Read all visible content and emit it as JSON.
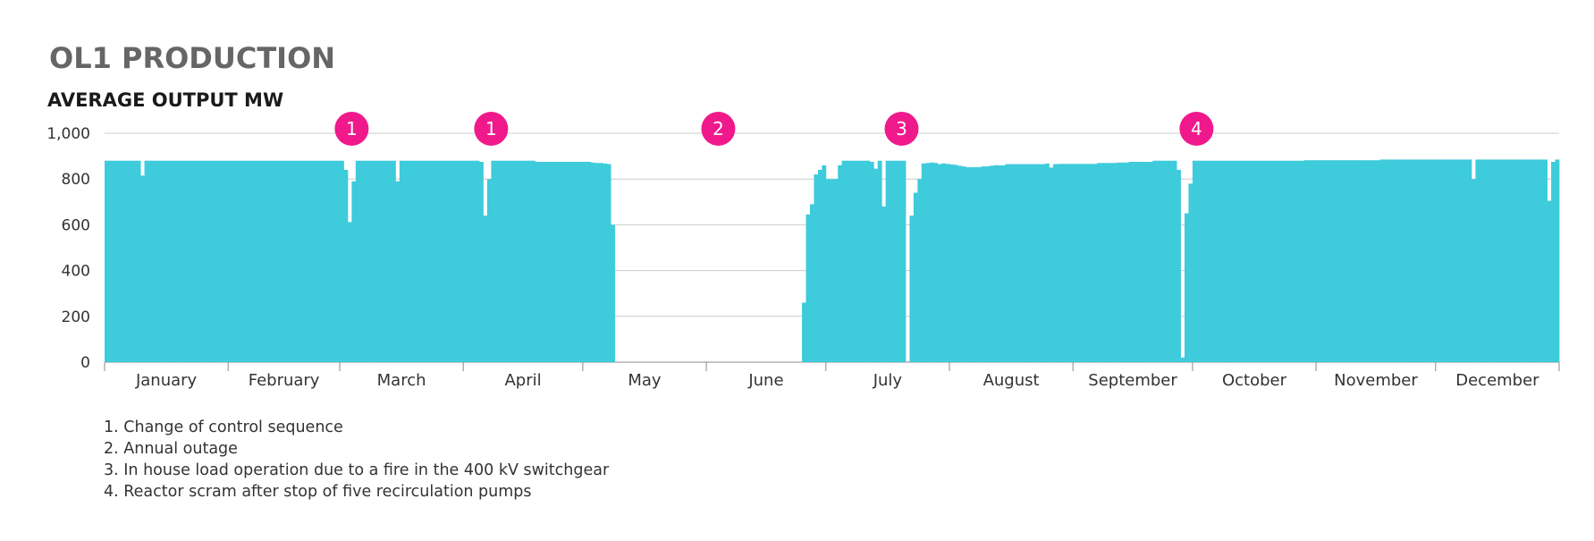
{
  "header": {
    "title": "OL1 PRODUCTION"
  },
  "chart_data": {
    "type": "bar",
    "title": "OL1 PRODUCTION",
    "subtitle": "AVERAGE OUTPUT MW",
    "xlabel": "",
    "ylabel": "AVERAGE OUTPUT MW",
    "ylim": [
      0,
      1000
    ],
    "y_ticks": [
      0,
      200,
      400,
      600,
      800,
      1000
    ],
    "y_tick_labels": [
      "0",
      "200",
      "400",
      "600",
      "800",
      "1,000"
    ],
    "x_unit": "day of year",
    "xlim": [
      0,
      365
    ],
    "months": [
      {
        "label": "January",
        "start": 0,
        "end": 31
      },
      {
        "label": "February",
        "start": 31,
        "end": 59
      },
      {
        "label": "March",
        "start": 59,
        "end": 90
      },
      {
        "label": "April",
        "start": 90,
        "end": 120
      },
      {
        "label": "May",
        "start": 120,
        "end": 151
      },
      {
        "label": "June",
        "start": 151,
        "end": 181
      },
      {
        "label": "July",
        "start": 181,
        "end": 212
      },
      {
        "label": "August",
        "start": 212,
        "end": 243
      },
      {
        "label": "September",
        "start": 243,
        "end": 273
      },
      {
        "label": "October",
        "start": 273,
        "end": 304
      },
      {
        "label": "November",
        "start": 304,
        "end": 334
      },
      {
        "label": "December",
        "start": 334,
        "end": 365
      }
    ],
    "grid": true,
    "bar_color": "#3ecbdb",
    "marker_color": "#f0198c",
    "daily_output_mw": [
      880,
      880,
      880,
      880,
      880,
      880,
      880,
      880,
      880,
      815,
      880,
      880,
      880,
      880,
      880,
      880,
      880,
      880,
      880,
      880,
      880,
      880,
      880,
      880,
      880,
      880,
      880,
      880,
      880,
      880,
      880,
      880,
      880,
      880,
      880,
      880,
      880,
      880,
      880,
      880,
      880,
      880,
      880,
      880,
      880,
      880,
      880,
      880,
      880,
      880,
      880,
      880,
      880,
      880,
      880,
      880,
      880,
      880,
      880,
      880,
      840,
      612,
      790,
      880,
      880,
      880,
      880,
      880,
      880,
      880,
      880,
      880,
      880,
      790,
      880,
      880,
      880,
      880,
      880,
      880,
      880,
      880,
      880,
      880,
      880,
      880,
      880,
      880,
      880,
      880,
      880,
      880,
      880,
      880,
      875,
      640,
      800,
      880,
      880,
      880,
      880,
      880,
      880,
      880,
      880,
      880,
      880,
      880,
      875,
      875,
      875,
      875,
      875,
      875,
      875,
      875,
      875,
      875,
      875,
      875,
      875,
      875,
      872,
      870,
      870,
      868,
      865,
      600,
      0,
      0,
      0,
      0,
      0,
      0,
      0,
      0,
      0,
      0,
      0,
      0,
      0,
      0,
      0,
      0,
      0,
      0,
      0,
      0,
      0,
      0,
      0,
      0,
      0,
      0,
      0,
      0,
      0,
      0,
      0,
      0,
      0,
      0,
      0,
      0,
      0,
      0,
      0,
      0,
      0,
      0,
      0,
      0,
      0,
      0,
      0,
      260,
      645,
      690,
      820,
      840,
      860,
      800,
      800,
      800,
      860,
      880,
      880,
      880,
      880,
      880,
      880,
      880,
      875,
      845,
      880,
      680,
      880,
      880,
      880,
      880,
      880,
      0,
      640,
      740,
      800,
      868,
      870,
      872,
      870,
      865,
      868,
      866,
      864,
      862,
      858,
      855,
      852,
      852,
      852,
      852,
      855,
      855,
      858,
      860,
      860,
      860,
      865,
      865,
      865,
      865,
      865,
      865,
      865,
      865,
      865,
      865,
      868,
      850,
      865,
      866,
      866,
      866,
      866,
      866,
      866,
      866,
      866,
      866,
      866,
      870,
      870,
      870,
      870,
      870,
      872,
      872,
      872,
      875,
      875,
      875,
      875,
      875,
      875,
      880,
      880,
      880,
      880,
      880,
      880,
      840,
      20,
      650,
      780,
      880,
      880,
      880,
      880,
      880,
      880,
      880,
      880,
      880,
      880,
      880,
      880,
      880,
      880,
      880,
      880,
      880,
      880,
      880,
      880,
      880,
      880,
      880,
      880,
      880,
      880,
      880,
      880,
      882,
      882,
      882,
      882,
      882,
      882,
      882,
      882,
      882,
      882,
      882,
      882,
      882,
      882,
      882,
      882,
      882,
      882,
      882,
      885,
      885,
      885,
      885,
      885,
      885,
      885,
      885,
      885,
      885,
      885,
      885,
      885,
      885,
      885,
      885,
      885,
      885,
      885,
      885,
      885,
      885,
      885,
      800,
      885,
      885,
      885,
      885,
      885,
      885,
      885,
      885,
      885,
      885,
      885,
      885,
      885,
      885,
      885,
      885,
      885,
      885,
      705,
      875,
      885
    ],
    "annotations": [
      {
        "label": "1",
        "day": 62
      },
      {
        "label": "1",
        "day": 97
      },
      {
        "label": "2",
        "day": 154
      },
      {
        "label": "3",
        "day": 200
      },
      {
        "label": "4",
        "day": 274
      }
    ],
    "notes": [
      "1. Change of control sequence",
      "2. Annual outage",
      "3. In house load operation due to a fire in the 400 kV switchgear",
      "4. Reactor scram after stop of five recirculation pumps"
    ]
  }
}
